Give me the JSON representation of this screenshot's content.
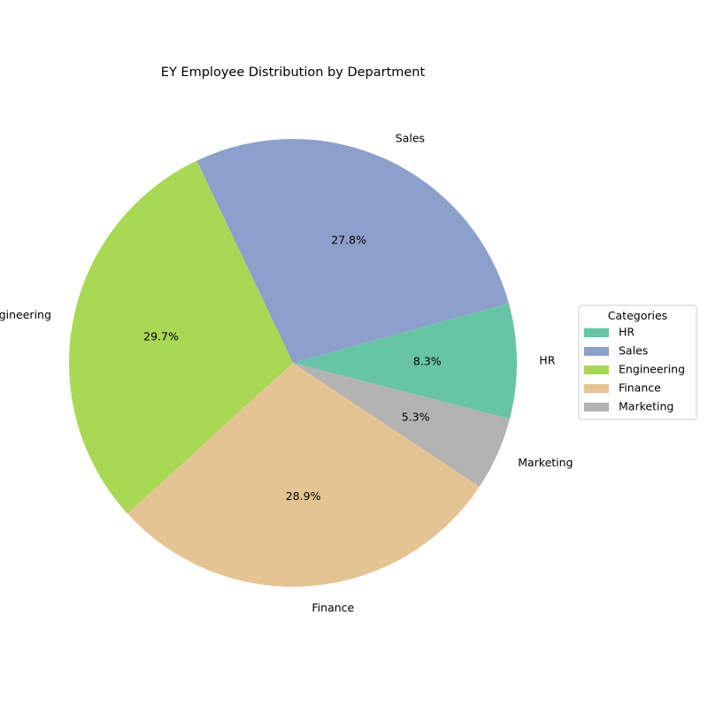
{
  "chart_data": {
    "type": "pie",
    "title": "EY Employee Distribution by Department",
    "categories": [
      "HR",
      "Sales",
      "Engineering",
      "Finance",
      "Marketing"
    ],
    "values": [
      8.3,
      27.8,
      29.7,
      28.9,
      5.3
    ],
    "value_labels": [
      "8.3%",
      "27.8%",
      "29.7%",
      "28.9%",
      "5.3%"
    ],
    "colors": [
      "#66c5a5",
      "#8da0cb",
      "#a9d855",
      "#e5c494",
      "#b3b3b3"
    ],
    "legend": {
      "title": "Categories",
      "placement": "right",
      "entries": [
        "HR",
        "Sales",
        "Engineering",
        "Finance",
        "Marketing"
      ]
    }
  }
}
